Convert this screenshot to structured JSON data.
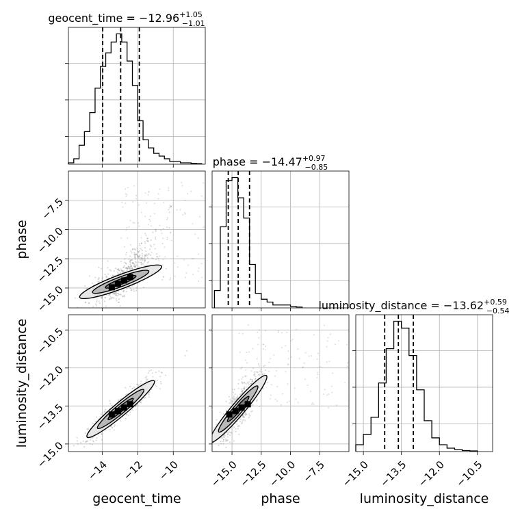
{
  "chart_data": {
    "type": "scatter",
    "variables": [
      "geocent_time",
      "phase",
      "luminosity_distance"
    ],
    "axis_labels": [
      "geocent_time",
      "phase",
      "luminosity_distance"
    ],
    "ranges": {
      "geocent_time": [
        -15.9,
        -8.2
      ],
      "phase": [
        -16.7,
        -5.0
      ],
      "luminosity_distance": [
        -15.3,
        -9.9
      ]
    },
    "ticks": {
      "geocent_time": [
        {
          "value": -14,
          "label": "−14"
        },
        {
          "value": -12,
          "label": "−12"
        },
        {
          "value": -10,
          "label": "−10"
        }
      ],
      "phase": [
        {
          "value": -15,
          "label": "−15.0"
        },
        {
          "value": -12.5,
          "label": "−12.5"
        },
        {
          "value": -10,
          "label": "−10.0"
        },
        {
          "value": -7.5,
          "label": "−7.5"
        }
      ],
      "luminosity_distance": [
        {
          "value": -15,
          "label": "−15.0"
        },
        {
          "value": -13.5,
          "label": "−13.5"
        },
        {
          "value": -12,
          "label": "−12.0"
        },
        {
          "value": -10.5,
          "label": "−10.5"
        }
      ]
    },
    "titles": [
      {
        "name": "geocent_time",
        "prefix": "geocent_time = ",
        "median": "−12.96",
        "plus": "+1.05",
        "minus": "−1.01"
      },
      {
        "name": "phase",
        "prefix": "phase = ",
        "median": "−14.47",
        "plus": "+0.97",
        "minus": "−0.85"
      },
      {
        "name": "luminosity_distance",
        "prefix": "luminosity_distance = ",
        "median": "−13.62",
        "plus": "+0.59",
        "minus": "−0.54"
      }
    ],
    "quantiles": {
      "geocent_time": [
        -13.97,
        -12.96,
        -11.91
      ],
      "phase": [
        -15.32,
        -14.47,
        -13.5
      ],
      "luminosity_distance": [
        -14.16,
        -13.62,
        -13.03
      ]
    },
    "histograms": {
      "geocent_time": {
        "edges": [
          -15.9,
          -15.6,
          -15.3,
          -15.0,
          -14.7,
          -14.4,
          -14.1,
          -13.8,
          -13.5,
          -13.2,
          -12.9,
          -12.6,
          -12.3,
          -12.0,
          -11.7,
          -11.4,
          -11.1,
          -10.8,
          -10.5,
          -10.2,
          -9.9,
          -9.6,
          -9.3,
          -9.0,
          -8.7,
          -8.4
        ],
        "counts": [
          0.5,
          2,
          7,
          12,
          19,
          28,
          36,
          41,
          45,
          48,
          45,
          38,
          29,
          16,
          9,
          6,
          4,
          3,
          2,
          1,
          1,
          0.5,
          0.5,
          0.3,
          0.2
        ]
      },
      "phase": {
        "edges": [
          -16.5,
          -16.0,
          -15.5,
          -15.0,
          -14.5,
          -14.0,
          -13.5,
          -13.0,
          -12.5,
          -12.0,
          -11.5,
          -11.0,
          -10.5,
          -10.0,
          -9.5,
          -9.0
        ],
        "counts": [
          6,
          28,
          44,
          45,
          38,
          31,
          15,
          5,
          3,
          2,
          1,
          1,
          1,
          0.5,
          0.3
        ]
      },
      "luminosity_distance": {
        "edges": [
          -15.3,
          -15.0,
          -14.7,
          -14.4,
          -14.1,
          -13.8,
          -13.5,
          -13.2,
          -12.9,
          -12.6,
          -12.3,
          -12.0,
          -11.7,
          -11.4,
          -11.1,
          -10.8,
          -10.5
        ],
        "counts": [
          2,
          5,
          10,
          20,
          30,
          38,
          36,
          28,
          18,
          9,
          4,
          2,
          1,
          0.6,
          0.3,
          0.2
        ]
      }
    },
    "scatter_style": {
      "color": "#6e6e6e",
      "opacity": 0.25
    },
    "contour_colors": [
      "#e6e6e6",
      "#b4b4b4",
      "#6a6a6a",
      "#000000"
    ]
  }
}
